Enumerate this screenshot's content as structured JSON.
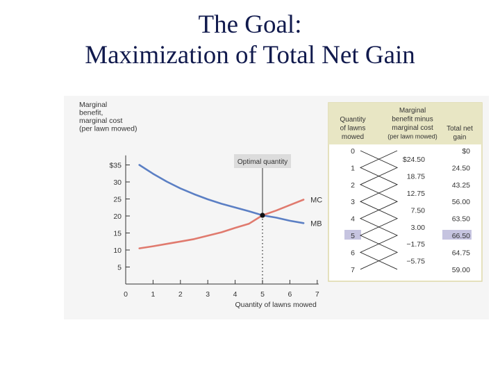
{
  "slide": {
    "title_line1": "The Goal:",
    "title_line2": "Maximization of Total Net Gain"
  },
  "chart_data": [
    {
      "type": "line",
      "title": "",
      "ylabel_lines": [
        "Marginal",
        "benefit,",
        "marginal cost",
        "(per lawn mowed)"
      ],
      "xlabel": "Quantity of lawns mowed",
      "xlim": [
        0,
        7
      ],
      "ylim": [
        0,
        37
      ],
      "x_ticks": [
        0,
        1,
        2,
        3,
        4,
        5,
        6,
        7
      ],
      "y_ticks": [
        {
          "value": 5,
          "label": "5"
        },
        {
          "value": 10,
          "label": "10"
        },
        {
          "value": 15,
          "label": "15"
        },
        {
          "value": 20,
          "label": "20"
        },
        {
          "value": 25,
          "label": "25"
        },
        {
          "value": 30,
          "label": "30"
        },
        {
          "value": 35,
          "label": "$35"
        }
      ],
      "grid": false,
      "series": [
        {
          "name": "MB",
          "color": "#5b7fc4",
          "points": [
            [
              0.5,
              35
            ],
            [
              1,
              32.4
            ],
            [
              1.5,
              30.1
            ],
            [
              2,
              28.1
            ],
            [
              2.5,
              26.4
            ],
            [
              3,
              24.9
            ],
            [
              3.5,
              23.6
            ],
            [
              4,
              22.5
            ],
            [
              4.5,
              21.4
            ],
            [
              5,
              20.2
            ],
            [
              5.5,
              19.5
            ],
            [
              6,
              18.6
            ],
            [
              6.5,
              17.9
            ]
          ]
        },
        {
          "name": "MC",
          "color": "#e07a6e",
          "points": [
            [
              0.5,
              10.5
            ],
            [
              1,
              11.1
            ],
            [
              1.5,
              11.8
            ],
            [
              2,
              12.5
            ],
            [
              2.5,
              13.2
            ],
            [
              3,
              14.2
            ],
            [
              3.5,
              15.2
            ],
            [
              4,
              16.5
            ],
            [
              4.5,
              17.7
            ],
            [
              5,
              20.2
            ],
            [
              5.5,
              21.6
            ],
            [
              6,
              23.2
            ],
            [
              6.5,
              24.8
            ]
          ]
        }
      ],
      "annotations": [
        {
          "text": "Optimal quantity",
          "x": 5,
          "y": 20.2
        }
      ]
    },
    {
      "type": "table",
      "columns": [
        "Quantity of lawns mowed",
        "Marginal benefit minus marginal cost (per lawn mowed)",
        "Total net gain"
      ],
      "rows": [
        {
          "quantity": "0",
          "total": "$0"
        },
        {
          "quantity": "1",
          "total": "24.50"
        },
        {
          "quantity": "2",
          "total": "43.25"
        },
        {
          "quantity": "3",
          "total": "56.00"
        },
        {
          "quantity": "4",
          "total": "63.50"
        },
        {
          "quantity": "5",
          "total": "66.50",
          "highlight": true
        },
        {
          "quantity": "6",
          "total": "64.75"
        },
        {
          "quantity": "7",
          "total": "59.00"
        }
      ],
      "marginal_values": [
        "$24.50",
        "18.75",
        "12.75",
        "7.50",
        "3.00",
        "−1.75",
        "−5.75"
      ],
      "header_color": "#e8e6c4",
      "highlight_color": "#c6c4e0"
    }
  ]
}
